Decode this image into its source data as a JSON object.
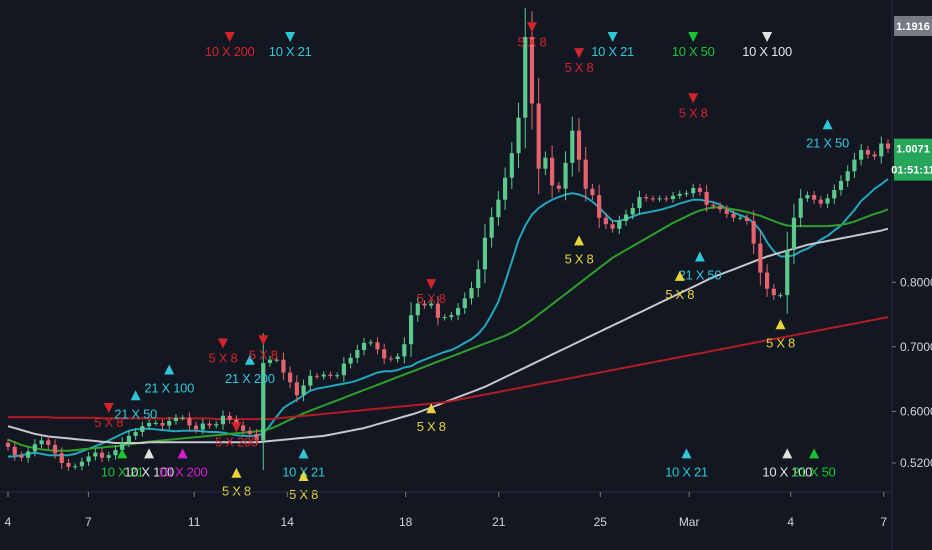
{
  "chart_data": {
    "type": "candlestick",
    "x_ticks": [
      "4",
      "7",
      "11",
      "14",
      "18",
      "21",
      "25",
      "Mar",
      "4",
      "7"
    ],
    "y_ticks": [
      "0.5200",
      "0.6000",
      "0.7000",
      "0.8000"
    ],
    "ylim": [
      0.475,
      1.225
    ],
    "last_price": "1.0071",
    "countdown": "01:51:11",
    "top_label": "1.1916",
    "colors": {
      "background": "#131722",
      "up": "#5ec98f",
      "down": "#e5646f",
      "ma5": "#1fa8be",
      "ma21": "#2ea02a",
      "ma100": "#c8c8cc",
      "ma200": "#b21d24",
      "signal_cyan": "#2fc7d8",
      "signal_red": "#d3232b",
      "signal_yellow": "#e8d43a",
      "signal_green": "#19c433",
      "signal_white": "#e2e2e2",
      "signal_magenta": "#d11ed3"
    },
    "series": [
      {
        "name": "close",
        "values": [
          0.545,
          0.532,
          0.528,
          0.538,
          0.549,
          0.555,
          0.548,
          0.535,
          0.52,
          0.514,
          0.515,
          0.522,
          0.53,
          0.536,
          0.528,
          0.532,
          0.54,
          0.552,
          0.562,
          0.568,
          0.577,
          0.582,
          0.582,
          0.578,
          0.585,
          0.59,
          0.59,
          0.578,
          0.572,
          0.581,
          0.578,
          0.58,
          0.593,
          0.587,
          0.578,
          0.57,
          0.565,
          0.555,
          0.675,
          0.68,
          0.68,
          0.66,
          0.645,
          0.625,
          0.64,
          0.655,
          0.654,
          0.657,
          0.655,
          0.656,
          0.674,
          0.683,
          0.695,
          0.706,
          0.707,
          0.696,
          0.682,
          0.681,
          0.685,
          0.704,
          0.749,
          0.767,
          0.764,
          0.767,
          0.745,
          0.746,
          0.749,
          0.76,
          0.775,
          0.791,
          0.82,
          0.869,
          0.901,
          0.928,
          0.962,
          1.0,
          1.055,
          1.18,
          1.077,
          0.976,
          0.993,
          0.95,
          0.945,
          0.985,
          1.035,
          0.99,
          0.945,
          0.935,
          0.9,
          0.89,
          0.883,
          0.895,
          0.905,
          0.915,
          0.932,
          0.93,
          0.929,
          0.93,
          0.929,
          0.934,
          0.937,
          0.938,
          0.946,
          0.94,
          0.92,
          0.918,
          0.913,
          0.906,
          0.9,
          0.9,
          0.895,
          0.86,
          0.815,
          0.79,
          0.78,
          0.78,
          0.85,
          0.9,
          0.93,
          0.935,
          0.928,
          0.922,
          0.93,
          0.943,
          0.957,
          0.972,
          0.99,
          1.005,
          0.998,
          0.995,
          1.015,
          1.0071
        ]
      },
      {
        "name": "MA5",
        "values": [
          0.53,
          0.53,
          0.532,
          0.534,
          0.536,
          0.534,
          0.532,
          0.532,
          0.532,
          0.532,
          0.534,
          0.538,
          0.542,
          0.546,
          0.55,
          0.555,
          0.56,
          0.565,
          0.57,
          0.572,
          0.573,
          0.573,
          0.572,
          0.571,
          0.57,
          0.569,
          0.57,
          0.57,
          0.57,
          0.569,
          0.568,
          0.568,
          0.567,
          0.565,
          0.563,
          0.562,
          0.562,
          0.562,
          0.566,
          0.578,
          0.592,
          0.605,
          0.612,
          0.618,
          0.625,
          0.632,
          0.635,
          0.637,
          0.639,
          0.641,
          0.643,
          0.645,
          0.648,
          0.652,
          0.656,
          0.66,
          0.662,
          0.662,
          0.664,
          0.668,
          0.67,
          0.676,
          0.68,
          0.684,
          0.688,
          0.692,
          0.695,
          0.7,
          0.706,
          0.712,
          0.72,
          0.732,
          0.75,
          0.77,
          0.8,
          0.832,
          0.865,
          0.888,
          0.905,
          0.915,
          0.922,
          0.928,
          0.932,
          0.936,
          0.938,
          0.936,
          0.932,
          0.925,
          0.916,
          0.905,
          0.895,
          0.895,
          0.898,
          0.902,
          0.906,
          0.908,
          0.91,
          0.912,
          0.915,
          0.918,
          0.922,
          0.925,
          0.928,
          0.928,
          0.926,
          0.924,
          0.92,
          0.914,
          0.908,
          0.904,
          0.9,
          0.892,
          0.88,
          0.862,
          0.848,
          0.84,
          0.84,
          0.842,
          0.848,
          0.852,
          0.858,
          0.866,
          0.872,
          0.88,
          0.888,
          0.9,
          0.912,
          0.926,
          0.935,
          0.945,
          0.952,
          0.96
        ]
      },
      {
        "name": "MA21",
        "values": [
          0.556,
          0.552,
          0.548,
          0.545,
          0.543,
          0.541,
          0.54,
          0.539,
          0.539,
          0.539,
          0.54,
          0.541,
          0.542,
          0.543,
          0.544,
          0.545,
          0.546,
          0.547,
          0.549,
          0.55,
          0.552,
          0.553,
          0.554,
          0.555,
          0.556,
          0.557,
          0.558,
          0.559,
          0.56,
          0.561,
          0.562,
          0.563,
          0.564,
          0.565,
          0.566,
          0.567,
          0.568,
          0.569,
          0.57,
          0.573,
          0.577,
          0.582,
          0.587,
          0.592,
          0.597,
          0.601,
          0.605,
          0.609,
          0.613,
          0.617,
          0.621,
          0.625,
          0.629,
          0.633,
          0.637,
          0.641,
          0.645,
          0.649,
          0.653,
          0.657,
          0.661,
          0.665,
          0.669,
          0.673,
          0.677,
          0.681,
          0.685,
          0.689,
          0.693,
          0.697,
          0.701,
          0.705,
          0.709,
          0.713,
          0.717,
          0.722,
          0.728,
          0.735,
          0.742,
          0.75,
          0.758,
          0.766,
          0.774,
          0.782,
          0.79,
          0.798,
          0.806,
          0.814,
          0.822,
          0.83,
          0.838,
          0.844,
          0.85,
          0.856,
          0.862,
          0.868,
          0.874,
          0.88,
          0.886,
          0.892,
          0.897,
          0.902,
          0.907,
          0.911,
          0.914,
          0.916,
          0.916,
          0.915,
          0.913,
          0.911,
          0.909,
          0.906,
          0.903,
          0.899,
          0.895,
          0.891,
          0.888,
          0.887,
          0.887,
          0.887,
          0.887,
          0.887,
          0.887,
          0.888,
          0.889,
          0.891,
          0.894,
          0.898,
          0.902,
          0.906,
          0.909,
          0.913
        ]
      },
      {
        "name": "MA100",
        "values": [
          0.577,
          0.574,
          0.571,
          0.568,
          0.565,
          0.563,
          0.561,
          0.56,
          0.559,
          0.558,
          0.557,
          0.556,
          0.555,
          0.554,
          0.553,
          0.552,
          0.551,
          0.551,
          0.551,
          0.551,
          0.551,
          0.552,
          0.552,
          0.552,
          0.552,
          0.552,
          0.552,
          0.552,
          0.552,
          0.552,
          0.552,
          0.552,
          0.552,
          0.552,
          0.552,
          0.552,
          0.552,
          0.552,
          0.553,
          0.554,
          0.555,
          0.556,
          0.557,
          0.558,
          0.559,
          0.56,
          0.561,
          0.562,
          0.564,
          0.566,
          0.568,
          0.57,
          0.572,
          0.574,
          0.577,
          0.58,
          0.583,
          0.586,
          0.589,
          0.592,
          0.595,
          0.598,
          0.602,
          0.606,
          0.61,
          0.614,
          0.618,
          0.622,
          0.626,
          0.63,
          0.634,
          0.638,
          0.643,
          0.648,
          0.653,
          0.658,
          0.663,
          0.668,
          0.673,
          0.678,
          0.683,
          0.688,
          0.693,
          0.698,
          0.703,
          0.708,
          0.713,
          0.718,
          0.723,
          0.728,
          0.733,
          0.738,
          0.743,
          0.748,
          0.753,
          0.758,
          0.763,
          0.768,
          0.773,
          0.778,
          0.783,
          0.788,
          0.793,
          0.798,
          0.803,
          0.808,
          0.812,
          0.816,
          0.82,
          0.824,
          0.828,
          0.832,
          0.836,
          0.84,
          0.843,
          0.846,
          0.849,
          0.852,
          0.855,
          0.858,
          0.86,
          0.862,
          0.864,
          0.866,
          0.868,
          0.87,
          0.872,
          0.874,
          0.876,
          0.878,
          0.88,
          0.883
        ]
      },
      {
        "name": "MA200",
        "values": [
          0.591,
          0.591,
          0.591,
          0.591,
          0.591,
          0.591,
          0.591,
          0.59,
          0.59,
          0.59,
          0.59,
          0.59,
          0.59,
          0.59,
          0.589,
          0.589,
          0.589,
          0.589,
          0.589,
          0.589,
          0.589,
          0.589,
          0.589,
          0.589,
          0.589,
          0.589,
          0.589,
          0.589,
          0.589,
          0.589,
          0.589,
          0.588,
          0.588,
          0.588,
          0.588,
          0.588,
          0.588,
          0.588,
          0.588,
          0.588,
          0.589,
          0.59,
          0.591,
          0.592,
          0.593,
          0.594,
          0.595,
          0.596,
          0.597,
          0.598,
          0.599,
          0.6,
          0.601,
          0.602,
          0.603,
          0.604,
          0.605,
          0.606,
          0.607,
          0.608,
          0.609,
          0.61,
          0.611,
          0.612,
          0.613,
          0.614,
          0.616,
          0.618,
          0.62,
          0.622,
          0.624,
          0.626,
          0.628,
          0.63,
          0.632,
          0.634,
          0.636,
          0.638,
          0.64,
          0.642,
          0.644,
          0.646,
          0.648,
          0.65,
          0.652,
          0.654,
          0.656,
          0.658,
          0.66,
          0.662,
          0.664,
          0.666,
          0.668,
          0.67,
          0.672,
          0.674,
          0.676,
          0.678,
          0.68,
          0.682,
          0.684,
          0.686,
          0.688,
          0.69,
          0.692,
          0.694,
          0.696,
          0.698,
          0.7,
          0.702,
          0.704,
          0.706,
          0.708,
          0.71,
          0.712,
          0.714,
          0.716,
          0.718,
          0.72,
          0.722,
          0.724,
          0.726,
          0.728,
          0.73,
          0.732,
          0.734,
          0.736,
          0.738,
          0.74,
          0.742,
          0.744,
          0.746
        ]
      }
    ],
    "signals": [
      {
        "text": "10 X 200",
        "color": "signal_red",
        "dir": "down",
        "bar": 33,
        "price": 1.16
      },
      {
        "text": "10 X 21",
        "color": "signal_cyan",
        "dir": "down",
        "bar": 42,
        "price": 1.16
      },
      {
        "text": "5 X 8",
        "color": "signal_red",
        "dir": "down",
        "bar": 78,
        "price": 1.175
      },
      {
        "text": "5 X 8",
        "color": "signal_red",
        "dir": "down",
        "bar": 85,
        "price": 1.135
      },
      {
        "text": "10 X 21",
        "color": "signal_cyan",
        "dir": "down",
        "bar": 90,
        "price": 1.16
      },
      {
        "text": "10 X 50",
        "color": "signal_green",
        "dir": "down",
        "bar": 102,
        "price": 1.16
      },
      {
        "text": "10 X 100",
        "color": "signal_white",
        "dir": "down",
        "bar": 113,
        "price": 1.16
      },
      {
        "text": "5 X 8",
        "color": "signal_red",
        "dir": "down",
        "bar": 102,
        "price": 1.065
      },
      {
        "text": "21 X 50",
        "color": "signal_cyan",
        "dir": "up",
        "bar": 122,
        "price": 1.065
      },
      {
        "text": "5 X 8",
        "color": "signal_yellow",
        "dir": "up",
        "bar": 85,
        "price": 0.885
      },
      {
        "text": "21 X 50",
        "color": "signal_cyan",
        "dir": "up",
        "bar": 103,
        "price": 0.86
      },
      {
        "text": "5 X 8",
        "color": "signal_yellow",
        "dir": "up",
        "bar": 100,
        "price": 0.83
      },
      {
        "text": "5 X 8",
        "color": "signal_yellow",
        "dir": "up",
        "bar": 115,
        "price": 0.755
      },
      {
        "text": "5 X 8",
        "color": "signal_red",
        "dir": "down",
        "bar": 63,
        "price": 0.777
      },
      {
        "text": "5 X 8",
        "color": "signal_yellow",
        "dir": "up",
        "bar": 63,
        "price": 0.625
      },
      {
        "text": "21 X 200",
        "color": "signal_cyan",
        "dir": "up",
        "bar": 36,
        "price": 0.7
      },
      {
        "text": "5 X 8",
        "color": "signal_red",
        "dir": "down",
        "bar": 32,
        "price": 0.685
      },
      {
        "text": "5 X 8",
        "color": "signal_red",
        "dir": "down",
        "bar": 38,
        "price": 0.69
      },
      {
        "text": "21 X 100",
        "color": "signal_cyan",
        "dir": "up",
        "bar": 24,
        "price": 0.685
      },
      {
        "text": "21 X 50",
        "color": "signal_cyan",
        "dir": "up",
        "bar": 19,
        "price": 0.645
      },
      {
        "text": "5 X 8",
        "color": "signal_red",
        "dir": "down",
        "bar": 15,
        "price": 0.585
      },
      {
        "text": "10 X 21",
        "color": "signal_green",
        "dir": "up",
        "bar": 17,
        "price": 0.555
      },
      {
        "text": "10 X 100",
        "color": "signal_white",
        "dir": "up",
        "bar": 21,
        "price": 0.555
      },
      {
        "text": "10 X 200",
        "color": "signal_magenta",
        "dir": "up",
        "bar": 26,
        "price": 0.555
      },
      {
        "text": "5 X 200",
        "color": "signal_red",
        "dir": "down",
        "bar": 34,
        "price": 0.555
      },
      {
        "text": "5 X 8",
        "color": "signal_yellow",
        "dir": "up",
        "bar": 34,
        "price": 0.525
      },
      {
        "text": "10 X 21",
        "color": "signal_cyan",
        "dir": "up",
        "bar": 44,
        "price": 0.555
      },
      {
        "text": "5 X 8",
        "color": "signal_yellow",
        "dir": "up",
        "bar": 44,
        "price": 0.52
      },
      {
        "text": "10 X 21",
        "color": "signal_cyan",
        "dir": "up",
        "bar": 101,
        "price": 0.555
      },
      {
        "text": "10 X 100",
        "color": "signal_white",
        "dir": "up",
        "bar": 116,
        "price": 0.555
      },
      {
        "text": "21 X 50",
        "color": "signal_green",
        "dir": "up",
        "bar": 120,
        "price": 0.555
      }
    ]
  }
}
